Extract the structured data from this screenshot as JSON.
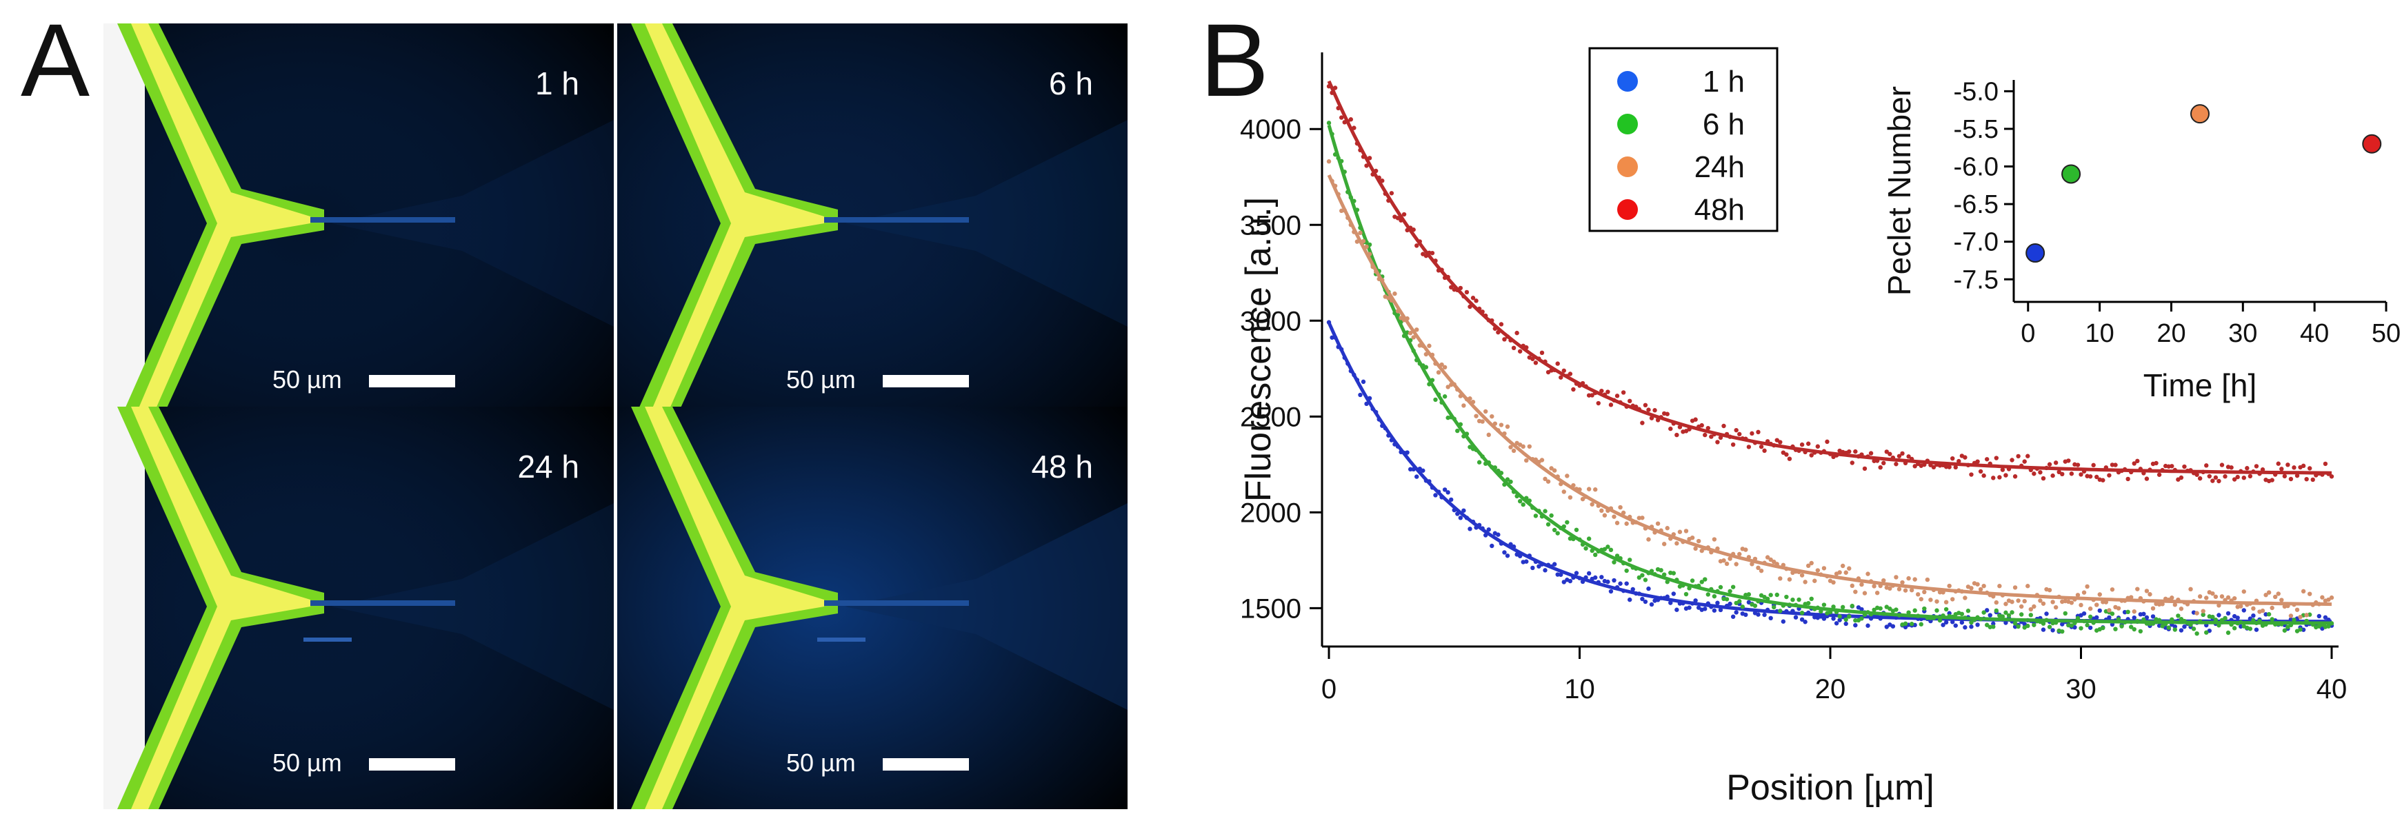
{
  "figure": {
    "panel_a_label": "A",
    "panel_b_label": "B",
    "micrographs": [
      {
        "time_label": "1 h",
        "scale_bar_label": "50 µm",
        "background_glow": 0.02
      },
      {
        "time_label": "6 h",
        "scale_bar_label": "50 µm",
        "background_glow": 0.1
      },
      {
        "time_label": "24 h",
        "scale_bar_label": "50 µm",
        "background_glow": 0.05
      },
      {
        "time_label": "48 h",
        "scale_bar_label": "50 µm",
        "background_glow": 0.32
      }
    ]
  },
  "chart_data": [
    {
      "type": "scatter",
      "description": "main plot: fluorescence profiles with exponential fits",
      "xlabel": "Position [µm]",
      "ylabel": "Fluorescence [a.u.]",
      "xlim": [
        0,
        40
      ],
      "ylim": [
        1300,
        4400
      ],
      "xticks": [
        0,
        10,
        20,
        30,
        40
      ],
      "yticks": [
        1500,
        2000,
        2500,
        3000,
        3500,
        4000
      ],
      "legend_position": "top-left-center",
      "series": [
        {
          "name": "1 h",
          "color": "#2535c8",
          "legend_marker_color": "#1a5ff0",
          "fit": {
            "model": "A*exp(-x/lambda)+C",
            "A": 1560,
            "lambda": 5.2,
            "C": 1430
          },
          "scatter_noise": 40
        },
        {
          "name": "6 h",
          "color": "#3aaa35",
          "legend_marker_color": "#22c322",
          "fit": {
            "model": "A*exp(-x/lambda)+C",
            "A": 2600,
            "lambda": 5.6,
            "C": 1420
          },
          "scatter_noise": 40
        },
        {
          "name": "24h",
          "color": "#d2906c",
          "legend_marker_color": "#f08c4a",
          "fit": {
            "model": "A*exp(-x/lambda)+C",
            "A": 2250,
            "lambda": 7.5,
            "C": 1510
          },
          "scatter_noise": 50
        },
        {
          "name": "48h",
          "color": "#b82a2a",
          "legend_marker_color": "#ee1111",
          "fit": {
            "model": "A*exp(-x/lambda)+C",
            "A": 2050,
            "lambda": 6.8,
            "C": 2200
          },
          "scatter_noise": 45
        }
      ]
    },
    {
      "type": "scatter",
      "description": "inset: Peclet number vs time",
      "xlabel": "Time [h]",
      "ylabel": "Peclet Number",
      "xlim": [
        -2,
        50
      ],
      "ylim": [
        -7.8,
        -4.85
      ],
      "xticks": [
        0,
        10,
        20,
        30,
        40,
        50
      ],
      "yticks": [
        -7.5,
        -7.0,
        -6.5,
        -6.0,
        -5.5,
        -5.0
      ],
      "ytick_labels": [
        "-7.5",
        "-7.0",
        "-6.5",
        "-6.0",
        "-5.5",
        "-5.0"
      ],
      "points": [
        {
          "label": "1 h",
          "x": 1,
          "y": -7.15,
          "color": "#1a3bd8"
        },
        {
          "label": "6 h",
          "x": 6,
          "y": -6.1,
          "color": "#2db82d"
        },
        {
          "label": "24h",
          "x": 24,
          "y": -5.3,
          "color": "#ee8a4e"
        },
        {
          "label": "48h",
          "x": 48,
          "y": -5.7,
          "color": "#dd2020"
        }
      ]
    }
  ]
}
